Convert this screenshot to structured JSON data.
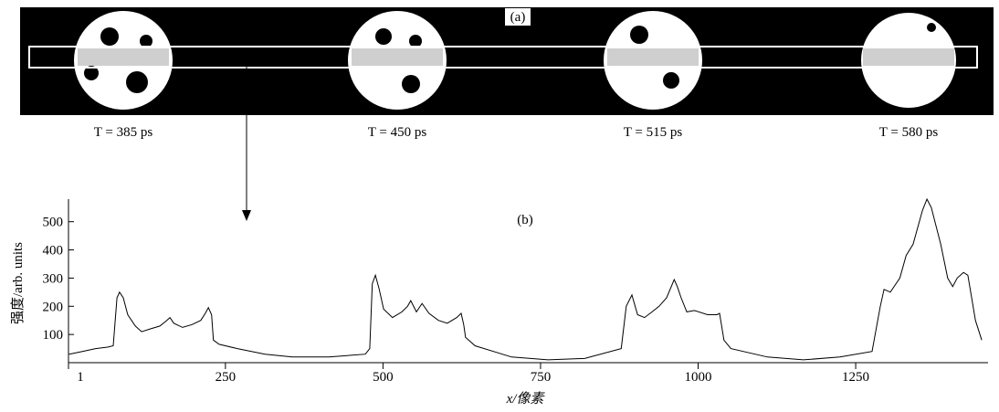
{
  "panel_a": {
    "label": "(a)",
    "captions": [
      "T = 385 ps",
      "T = 450 ps",
      "T = 515 ps",
      "T = 580 ps"
    ]
  },
  "chart_data": {
    "type": "line",
    "label": "(b)",
    "x_label": "x/像素",
    "y_label": "强度/arb. units",
    "xlim": [
      1,
      1460
    ],
    "xticks": [
      1,
      250,
      500,
      750,
      1000,
      1250
    ],
    "ylim": [
      0,
      580
    ],
    "yticks": [
      100,
      200,
      300,
      400,
      500
    ],
    "series": [
      {
        "color": "#000000",
        "x": [
          2,
          23,
          44,
          63,
          72,
          78,
          82,
          88,
          95,
          107,
          117,
          131,
          146,
          157,
          162,
          168,
          182,
          197,
          211,
          218,
          223,
          228,
          231,
          240,
          269,
          313,
          356,
          414,
          472,
          479,
          483,
          488,
          494,
          501,
          515,
          530,
          539,
          544,
          553,
          562,
          573,
          588,
          602,
          617,
          624,
          628,
          631,
          646,
          704,
          762,
          820,
          878,
          886,
          895,
          904,
          915,
          927,
          938,
          950,
          962,
          967,
          973,
          982,
          994,
          1015,
          1030,
          1034,
          1041,
          1052,
          1110,
          1167,
          1225,
          1276,
          1289,
          1295,
          1305,
          1320,
          1330,
          1341,
          1356,
          1363,
          1370,
          1385,
          1396,
          1404,
          1411,
          1421,
          1428,
          1440,
          1450
        ],
        "values": [
          30,
          40,
          50,
          55,
          60,
          230,
          250,
          230,
          170,
          130,
          110,
          120,
          130,
          150,
          160,
          140,
          125,
          135,
          150,
          175,
          195,
          170,
          80,
          65,
          50,
          30,
          20,
          20,
          30,
          50,
          280,
          310,
          260,
          190,
          160,
          180,
          200,
          220,
          180,
          210,
          175,
          150,
          140,
          160,
          175,
          135,
          90,
          60,
          20,
          10,
          15,
          50,
          200,
          240,
          170,
          160,
          180,
          200,
          230,
          295,
          270,
          230,
          180,
          185,
          170,
          170,
          175,
          80,
          50,
          20,
          10,
          20,
          40,
          200,
          260,
          250,
          300,
          380,
          420,
          540,
          580,
          550,
          420,
          300,
          270,
          300,
          320,
          310,
          150,
          80
        ]
      }
    ]
  }
}
